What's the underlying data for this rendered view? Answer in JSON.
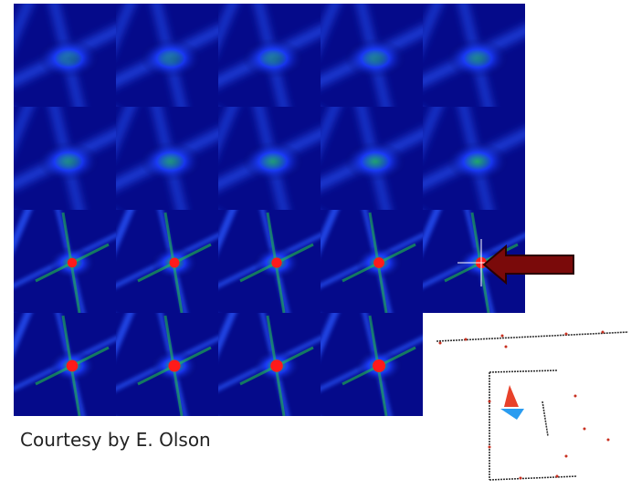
{
  "caption": "Courtesy by E. Olson",
  "grid": {
    "rows": 4,
    "cols": 5,
    "missing_last_row_tiles": 1
  },
  "colors": {
    "low": "#050a6e",
    "mid": "#1a3cff",
    "high": "#21d43a",
    "peak": "#ff1a1a",
    "arrow": "#7a0a0a",
    "robot_red": "#e8412a",
    "robot_blue": "#2a9cf0"
  }
}
